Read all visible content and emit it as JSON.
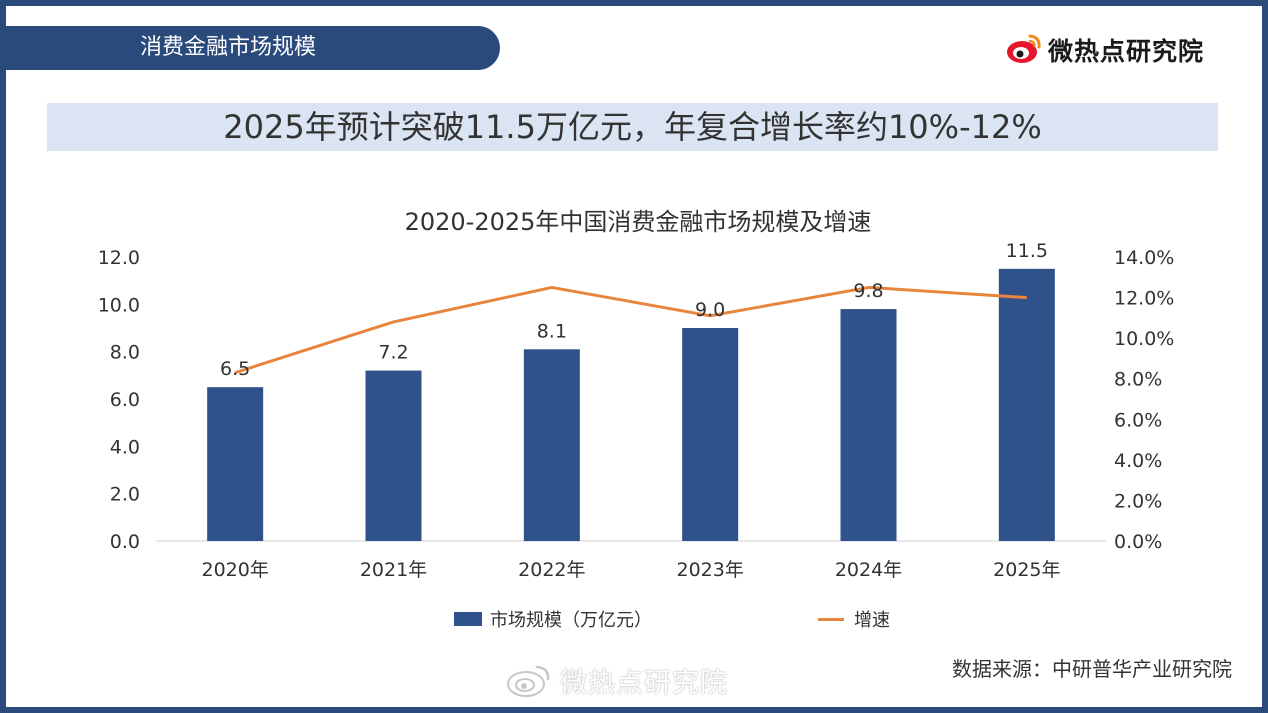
{
  "header": {
    "section_title": "消费金融市场规模",
    "brand_name": "微热点研究院",
    "brand_icon": "weibo-eye-logo"
  },
  "headline": "2025年预计突破11.5万亿元，年复合增长率约10%-12%",
  "source_text": "数据来源：中研普华产业研究院",
  "watermark": "微热点研究院",
  "colors": {
    "bar": "#2f528a",
    "line": "#e8843b",
    "banner": "#2a4a7c",
    "headline_bg": "#dbe4f3"
  },
  "chart_data": {
    "type": "bar+line",
    "title": "2020-2025年中国消费金融市场规模及增速",
    "categories": [
      "2020年",
      "2021年",
      "2022年",
      "2023年",
      "2024年",
      "2025年"
    ],
    "series": [
      {
        "name": "市场规模（万亿元）",
        "type": "bar",
        "axis": "left",
        "values": [
          6.5,
          7.2,
          8.1,
          9.0,
          9.8,
          11.5
        ],
        "data_labels": [
          "6.5",
          "7.2",
          "8.1",
          "9.0",
          "9.8",
          "11.5"
        ]
      },
      {
        "name": "增速",
        "type": "line",
        "axis": "right",
        "values": [
          8.3,
          10.8,
          12.5,
          11.1,
          12.5,
          12.0
        ]
      }
    ],
    "y_left": {
      "range": [
        0,
        12
      ],
      "ticks": [
        "0.0",
        "2.0",
        "4.0",
        "6.0",
        "8.0",
        "10.0",
        "12.0"
      ]
    },
    "y_right": {
      "range": [
        0,
        14
      ],
      "ticks": [
        "0.0%",
        "2.0%",
        "4.0%",
        "6.0%",
        "8.0%",
        "10.0%",
        "12.0%",
        "14.0%"
      ]
    },
    "grid": false,
    "legend_position": "bottom"
  }
}
